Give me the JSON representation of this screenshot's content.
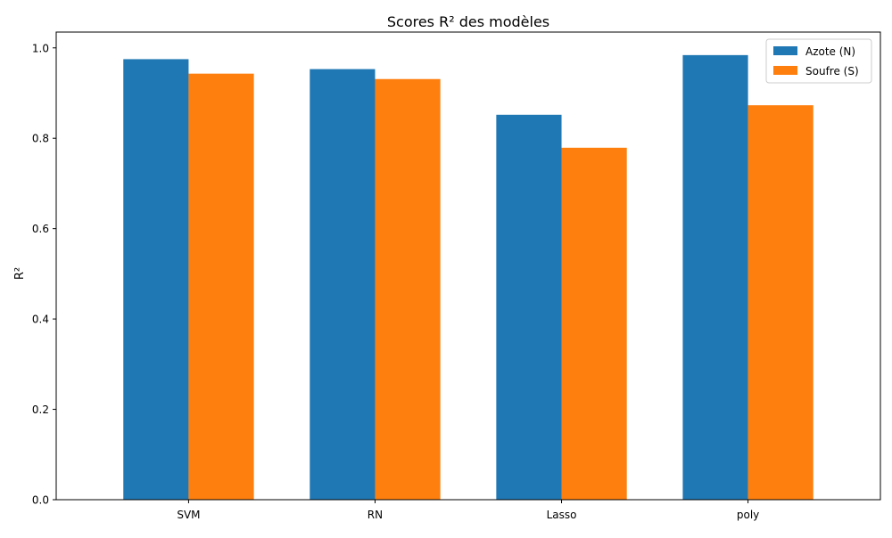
{
  "chart_data": {
    "type": "bar",
    "title": "Scores R² des modèles",
    "xlabel": "",
    "ylabel": "R²",
    "categories": [
      "SVM",
      "RN",
      "Lasso",
      "poly"
    ],
    "series": [
      {
        "name": "Azote (N)",
        "color": "#1f77b4",
        "values": [
          0.975,
          0.953,
          0.852,
          0.984
        ]
      },
      {
        "name": "Soufre (S)",
        "color": "#ff7f0e",
        "values": [
          0.943,
          0.931,
          0.779,
          0.873
        ]
      }
    ],
    "ylim": [
      0,
      1.035
    ],
    "yticks": [
      "0.0",
      "0.2",
      "0.4",
      "0.6",
      "0.8",
      "1.0"
    ],
    "grid": false,
    "legend_position": "top-right"
  }
}
